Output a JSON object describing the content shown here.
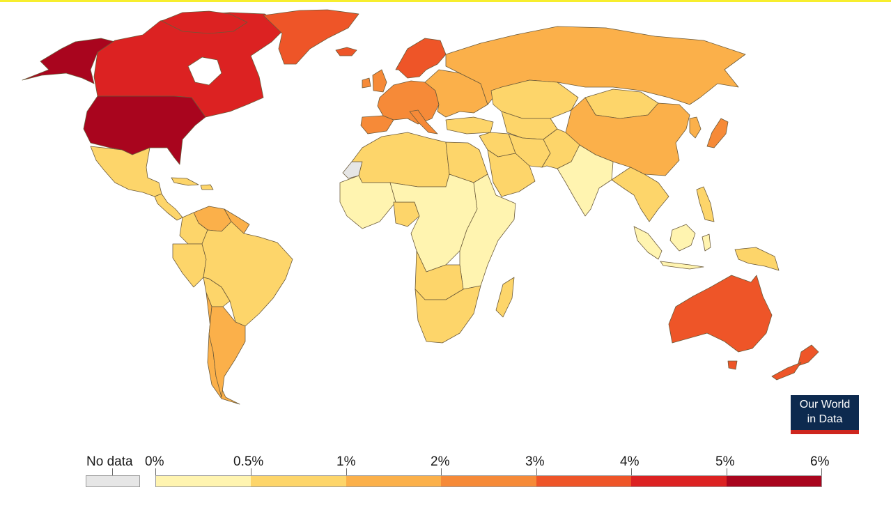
{
  "legend": {
    "no_data_label": "No data",
    "no_data_color": "#e6e6e6",
    "ticks": [
      "0%",
      "0.5%",
      "1%",
      "2%",
      "3%",
      "4%",
      "5%",
      "6%"
    ],
    "bins": [
      {
        "min": 0,
        "max": 0.5,
        "color": "#fff4b0"
      },
      {
        "min": 0.5,
        "max": 1,
        "color": "#fdd56a"
      },
      {
        "min": 1,
        "max": 2,
        "color": "#fbb04a"
      },
      {
        "min": 2,
        "max": 3,
        "color": "#f68a38"
      },
      {
        "min": 3,
        "max": 4,
        "color": "#ee5528"
      },
      {
        "min": 4,
        "max": 5,
        "color": "#dc2222"
      },
      {
        "min": 5,
        "max": 6,
        "color": "#a9051e"
      }
    ]
  },
  "logo": {
    "line1": "Our World",
    "line2": "in Data",
    "bg": "#0d2a4f",
    "accent": "#ce261e"
  },
  "regions": [
    {
      "name": "Alaska",
      "bin": 6
    },
    {
      "name": "Canada",
      "bin": 5
    },
    {
      "name": "United States",
      "bin": 6
    },
    {
      "name": "Greenland",
      "bin": 4
    },
    {
      "name": "Iceland",
      "bin": 4
    },
    {
      "name": "Mexico",
      "bin": 1
    },
    {
      "name": "Central America",
      "bin": 1
    },
    {
      "name": "Caribbean",
      "bin": 1
    },
    {
      "name": "Venezuela",
      "bin": 2
    },
    {
      "name": "Colombia",
      "bin": 1
    },
    {
      "name": "Brazil",
      "bin": 1
    },
    {
      "name": "Peru",
      "bin": 1
    },
    {
      "name": "Bolivia",
      "bin": 1
    },
    {
      "name": "Argentina",
      "bin": 2
    },
    {
      "name": "Chile",
      "bin": 2
    },
    {
      "name": "Western Sahara",
      "bin": null
    },
    {
      "name": "North Africa",
      "bin": 1
    },
    {
      "name": "Egypt",
      "bin": 1
    },
    {
      "name": "West Africa",
      "bin": 0
    },
    {
      "name": "Nigeria",
      "bin": 1
    },
    {
      "name": "Central Africa",
      "bin": 0
    },
    {
      "name": "East Africa",
      "bin": 0
    },
    {
      "name": "Angola and Zambia",
      "bin": 1
    },
    {
      "name": "Southern Africa",
      "bin": 1
    },
    {
      "name": "Madagascar",
      "bin": 1
    },
    {
      "name": "Western Europe",
      "bin": 3
    },
    {
      "name": "Spain",
      "bin": 3
    },
    {
      "name": "Scandinavia",
      "bin": 4
    },
    {
      "name": "Eastern Europe",
      "bin": 2
    },
    {
      "name": "Turkey",
      "bin": 1
    },
    {
      "name": "Russia",
      "bin": 2
    },
    {
      "name": "Kazakhstan",
      "bin": 1
    },
    {
      "name": "Central Asia",
      "bin": 1
    },
    {
      "name": "Middle East",
      "bin": 1
    },
    {
      "name": "Arabian Peninsula",
      "bin": 1
    },
    {
      "name": "Iran",
      "bin": 1
    },
    {
      "name": "Afghanistan and Pakistan",
      "bin": 1
    },
    {
      "name": "India",
      "bin": 0
    },
    {
      "name": "China",
      "bin": 2
    },
    {
      "name": "Mongolia",
      "bin": 1
    },
    {
      "name": "Japan",
      "bin": 3
    },
    {
      "name": "Korea",
      "bin": 2
    },
    {
      "name": "Southeast Asia",
      "bin": 1
    },
    {
      "name": "Indonesia",
      "bin": 0
    },
    {
      "name": "Philippines",
      "bin": 1
    },
    {
      "name": "Papua New Guinea",
      "bin": 1
    },
    {
      "name": "Australia",
      "bin": 4
    },
    {
      "name": "New Zealand",
      "bin": 4
    }
  ]
}
